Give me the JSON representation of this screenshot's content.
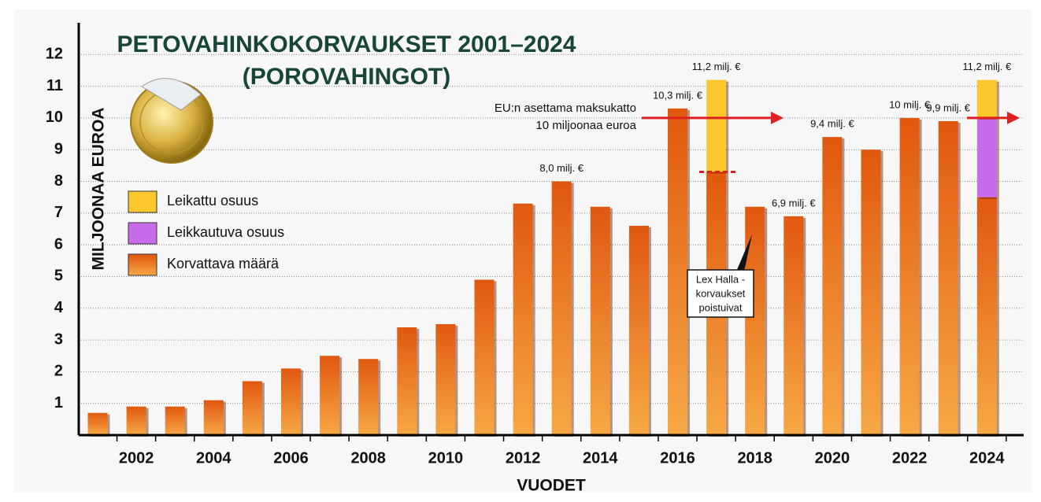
{
  "chart_data": {
    "type": "stacked_bar",
    "title": [
      "PETOVAHINKOKORVAUKSET 2001–2024",
      "(POROVAHINGOT)"
    ],
    "y_label": "MILJOONAA EUROA",
    "x_label": "VUODET",
    "categories": [
      null,
      "2002",
      null,
      "2004",
      null,
      "2006",
      null,
      "2008",
      null,
      "2010",
      null,
      "2012",
      null,
      "2014",
      null,
      "2016",
      null,
      "2018",
      null,
      "2020",
      null,
      "2022",
      null,
      "2024"
    ],
    "series": [
      {
        "name": "Korvattava määrä",
        "color": "#e0580f",
        "values": [
          0.7,
          0.9,
          0.9,
          1.1,
          1.7,
          2.1,
          2.5,
          2.4,
          3.4,
          3.5,
          4.9,
          7.3,
          8.0,
          7.2,
          6.6,
          10.3,
          8.3,
          7.2,
          6.9,
          9.4,
          9.0,
          10.0,
          9.9,
          7.5
        ]
      },
      {
        "name": "Leikkautuva osuus",
        "color": "#c86be8",
        "values": [
          null,
          null,
          null,
          null,
          null,
          null,
          null,
          null,
          null,
          null,
          null,
          null,
          null,
          null,
          null,
          null,
          null,
          null,
          null,
          null,
          null,
          null,
          null,
          2.5
        ]
      },
      {
        "name": "Leikattu osuus",
        "color": "#fcc72c",
        "values": [
          null,
          null,
          null,
          null,
          null,
          null,
          null,
          null,
          null,
          null,
          null,
          null,
          null,
          null,
          null,
          null,
          2.9,
          null,
          null,
          null,
          null,
          null,
          null,
          1.2
        ]
      }
    ],
    "legend_order": [
      2,
      1,
      0
    ],
    "totals": {
      "values": [
        null,
        null,
        null,
        null,
        null,
        null,
        null,
        null,
        null,
        null,
        null,
        null,
        8.0,
        null,
        null,
        10.3,
        11.2,
        null,
        6.9,
        9.4,
        null,
        10,
        9.9,
        11.2
      ],
      "value_labels": [
        null,
        null,
        null,
        null,
        null,
        null,
        null,
        null,
        null,
        null,
        null,
        null,
        "8,0 milj. €",
        null,
        null,
        "10,3 milj. €",
        "11,2 milj. €",
        null,
        "6,9 milj. €",
        "9,4 milj. €",
        null,
        "10 milj. €",
        "9,9 milj. €",
        "11,2 milj. €"
      ]
    },
    "cap": {
      "value": 10,
      "label": [
        "EU:n asettama maksukatto",
        "10 miljoonaa euroa"
      ],
      "color": "#e02020"
    },
    "lex_halla": {
      "value": 8.3,
      "label": [
        "Lex Halla -",
        "korvaukset",
        "poistuivat"
      ]
    },
    "ylim": [
      0,
      13
    ],
    "yticks": [
      1,
      2,
      3,
      4,
      5,
      6,
      7,
      8,
      9,
      10,
      11,
      12
    ],
    "grid": true
  }
}
